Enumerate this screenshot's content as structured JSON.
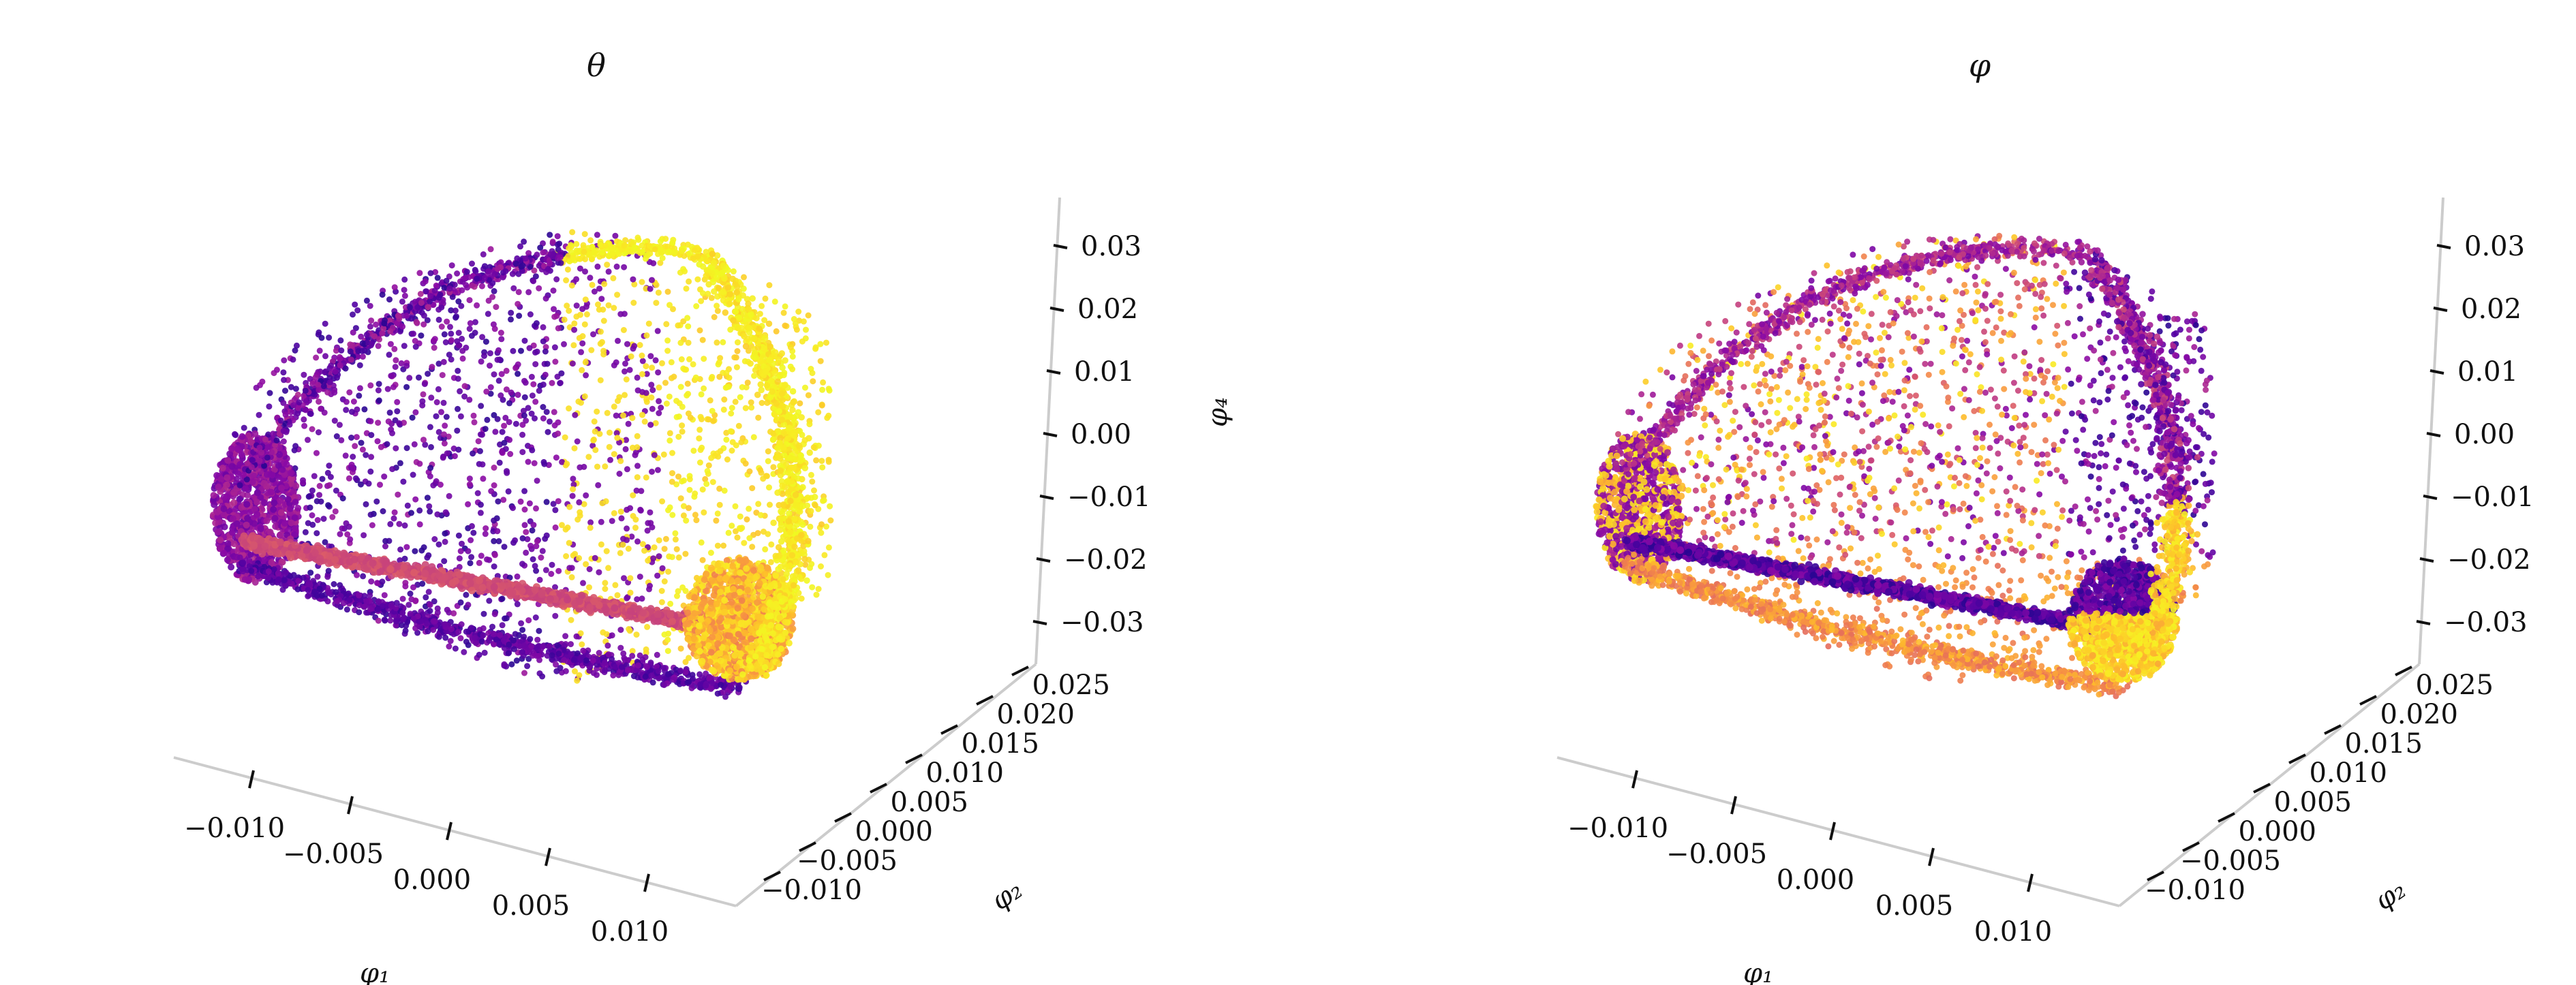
{
  "chart_data": [
    {
      "type": "scatter",
      "title": "θ",
      "xlabel": "φ₁",
      "ylabel": "φ₂",
      "zlabel": "φ₄",
      "colormap": "plasma",
      "x_ticks": [
        "−0.010",
        "−0.005",
        "0.000",
        "0.005",
        "0.010"
      ],
      "y_ticks": [
        "−0.010",
        "−0.005",
        "0.000",
        "0.005",
        "0.010",
        "0.015",
        "0.020",
        "0.025"
      ],
      "z_ticks": [
        "0.03",
        "0.02",
        "0.01",
        "0.00",
        "−0.01",
        "−0.02",
        "−0.03"
      ],
      "xlim": [
        -0.013,
        0.013
      ],
      "ylim": [
        -0.012,
        0.028
      ],
      "zlim": [
        -0.035,
        0.035
      ],
      "grid": false
    },
    {
      "type": "scatter",
      "title": "φ",
      "xlabel": "φ₁",
      "ylabel": "φ₂",
      "zlabel": "",
      "colormap": "plasma",
      "x_ticks": [
        "−0.010",
        "−0.005",
        "0.000",
        "0.005",
        "0.010"
      ],
      "y_ticks": [
        "−0.010",
        "−0.005",
        "0.000",
        "0.005",
        "0.010",
        "0.015",
        "0.020",
        "0.025"
      ],
      "z_ticks": [
        "0.03",
        "0.02",
        "0.01",
        "0.00",
        "−0.01",
        "−0.02",
        "−0.03"
      ],
      "xlim": [
        -0.013,
        0.013
      ],
      "ylim": [
        -0.012,
        0.028
      ],
      "zlim": [
        -0.035,
        0.035
      ],
      "grid": false
    }
  ],
  "colors": {
    "axis_line": "#cccccc",
    "tick_mark": "#111111",
    "plasma_low": "#0d0887",
    "plasma_high": "#f0f921"
  }
}
